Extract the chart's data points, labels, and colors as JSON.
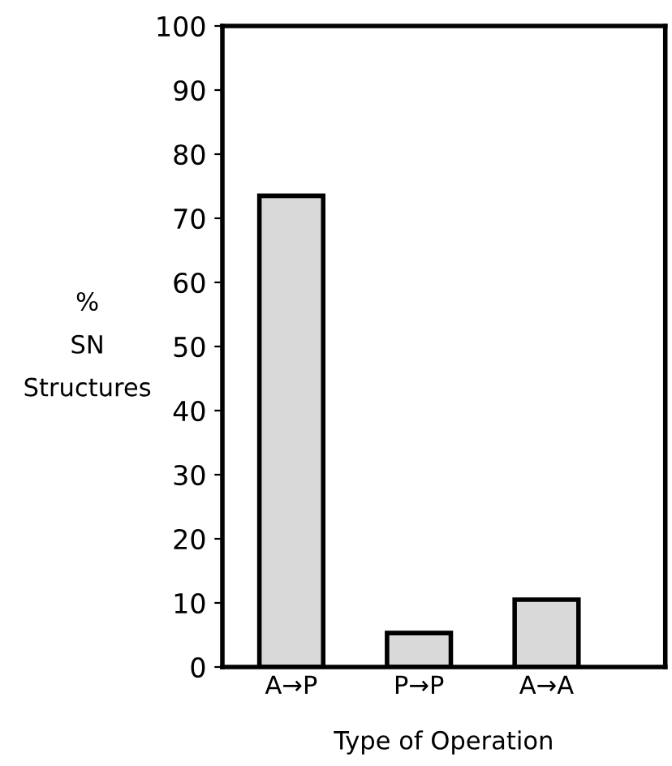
{
  "chart_data": {
    "type": "bar",
    "xlabel": "Type of Operation",
    "ylabel": "%\nSN\nStructures",
    "categories": [
      "A→P",
      "P→P",
      "A→A"
    ],
    "values": [
      73.5,
      5.3,
      10.5
    ],
    "color": "#d9d9d9",
    "ylim": [
      0,
      100
    ],
    "yticks": [
      0,
      10,
      20,
      30,
      40,
      50,
      60,
      70,
      80,
      90,
      100
    ],
    "grid": false
  }
}
